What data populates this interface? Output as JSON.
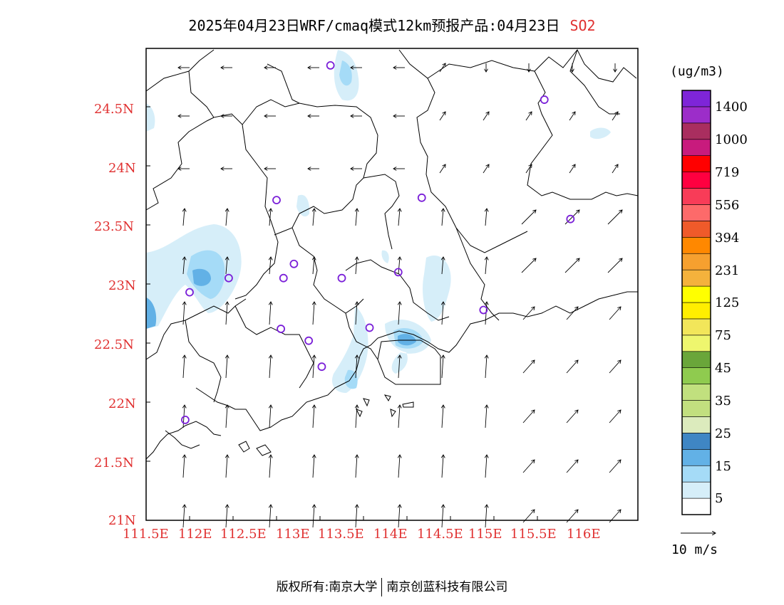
{
  "title": {
    "main": "2025年04月23日WRF/cmaq模式12km预报产品:04月23日",
    "pollutant": "SO2"
  },
  "map": {
    "lon_labels": [
      "111.5E",
      "112E",
      "112.5E",
      "113E",
      "113.5E",
      "114E",
      "114.5E",
      "115E",
      "115.5E",
      "116E"
    ],
    "lat_labels": [
      "24.5N",
      "24N",
      "23.5N",
      "23N",
      "22.5N",
      "22N",
      "21.5N",
      "21N"
    ],
    "label_color": "#e03030",
    "stations": [
      {
        "lon": 113.62,
        "lat": 24.85
      },
      {
        "lon": 113.0,
        "lat": 23.71
      },
      {
        "lon": 114.67,
        "lat": 23.73
      },
      {
        "lon": 116.08,
        "lat": 24.56
      },
      {
        "lon": 116.38,
        "lat": 23.55
      },
      {
        "lon": 112.45,
        "lat": 23.05
      },
      {
        "lon": 113.08,
        "lat": 23.05
      },
      {
        "lon": 113.2,
        "lat": 23.17
      },
      {
        "lon": 113.75,
        "lat": 23.05
      },
      {
        "lon": 114.4,
        "lat": 23.1
      },
      {
        "lon": 112.0,
        "lat": 22.93
      },
      {
        "lon": 115.38,
        "lat": 22.78
      },
      {
        "lon": 113.05,
        "lat": 22.62
      },
      {
        "lon": 113.37,
        "lat": 22.52
      },
      {
        "lon": 114.07,
        "lat": 22.63
      },
      {
        "lon": 113.52,
        "lat": 22.3
      },
      {
        "lon": 111.95,
        "lat": 21.85
      }
    ],
    "station_color": "#7a1fd8"
  },
  "legend": {
    "unit": "(ug/m3)",
    "colors": [
      "#ffffff",
      "#d6eef9",
      "#a5dbf7",
      "#62b1e6",
      "#3f86c4",
      "#dcebbd",
      "#c2df7f",
      "#c1e07e",
      "#8fcb4f",
      "#6aa63a",
      "#eef66e",
      "#f2e65a",
      "#ffee00",
      "#ffff00",
      "#f4b23c",
      "#f6a02f",
      "#ff8800",
      "#ef5a2a",
      "#fd6a6a",
      "#f83c58",
      "#ff0040",
      "#ff0000",
      "#c81b7d",
      "#a92e5f",
      "#9c2dc9",
      "#7e25d8"
    ],
    "labels": [
      "5",
      "15",
      "25",
      "35",
      "45",
      "75",
      "125",
      "231",
      "394",
      "556",
      "719",
      "1000",
      "1400"
    ],
    "ref_label": "10 m/s"
  },
  "footer": {
    "left": "版权所有:南京大学",
    "right": "南京创蓝科技有限公司"
  }
}
